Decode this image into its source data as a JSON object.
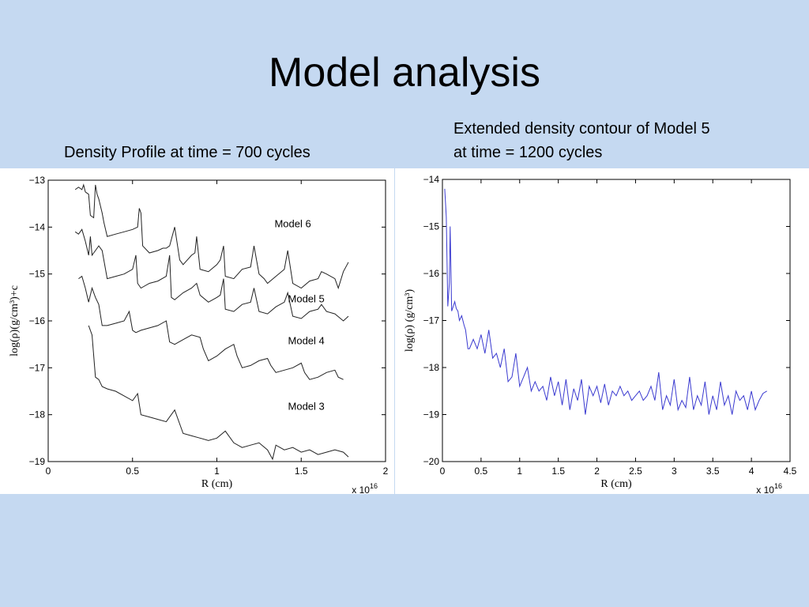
{
  "slide": {
    "title": "Model analysis",
    "left_caption": "Density Profile at time = 700 cycles",
    "right_caption_line1": "Extended density contour of Model 5",
    "right_caption_line2": "at time = 1200 cycles"
  },
  "chart_data": [
    {
      "type": "line",
      "title": "Density Profile at time = 700 cycles",
      "xlabel": "R (cm)",
      "ylabel": "log(ρ)(g/cm³)+c",
      "x_multiplier": "x 10",
      "x_multiplier_exp": "16",
      "xlim": [
        0,
        2
      ],
      "ylim": [
        -19,
        -13
      ],
      "x_ticks": [
        "0",
        "0.5",
        "1",
        "1.5",
        "2"
      ],
      "y_ticks": [
        "−13",
        "−14",
        "−15",
        "−16",
        "−17",
        "−18",
        "−19"
      ],
      "line_color": "#222222",
      "grid": false,
      "annotations": [
        {
          "text": "Model 6",
          "x": 1.45,
          "y": -14.0
        },
        {
          "text": "Model 5",
          "x": 1.53,
          "y": -15.6
        },
        {
          "text": "Model 4",
          "x": 1.53,
          "y": -16.5
        },
        {
          "text": "Model 3",
          "x": 1.53,
          "y": -17.9
        }
      ],
      "series": [
        {
          "x": [
            0.16,
            0.18,
            0.2,
            0.21,
            0.22,
            0.24,
            0.25,
            0.27,
            0.28,
            0.29,
            0.3,
            0.32,
            0.33,
            0.35,
            0.4,
            0.45,
            0.5,
            0.53,
            0.54,
            0.55,
            0.56,
            0.6,
            0.65,
            0.68,
            0.7,
            0.72,
            0.75,
            0.78,
            0.8,
            0.85,
            0.87,
            0.88,
            0.9,
            0.95,
            1.0,
            1.02,
            1.04,
            1.05,
            1.1,
            1.15,
            1.2,
            1.22,
            1.25,
            1.28,
            1.3,
            1.35,
            1.4,
            1.42,
            1.45,
            1.5,
            1.55,
            1.6,
            1.62,
            1.65,
            1.7,
            1.72,
            1.75,
            1.78
          ],
          "y": [
            -13.2,
            -13.15,
            -13.2,
            -13.1,
            -13.25,
            -13.3,
            -13.75,
            -13.8,
            -13.1,
            -13.3,
            -13.4,
            -13.7,
            -13.9,
            -14.2,
            -14.15,
            -14.1,
            -14.05,
            -14.0,
            -13.6,
            -13.7,
            -14.4,
            -14.55,
            -14.5,
            -14.45,
            -14.45,
            -14.4,
            -14.0,
            -14.7,
            -14.8,
            -14.6,
            -14.55,
            -14.2,
            -14.9,
            -14.95,
            -14.8,
            -14.7,
            -14.4,
            -15.05,
            -15.1,
            -14.9,
            -14.85,
            -14.4,
            -15.0,
            -15.1,
            -15.2,
            -15.05,
            -14.9,
            -14.5,
            -15.2,
            -15.3,
            -15.15,
            -15.1,
            -14.95,
            -15.0,
            -15.1,
            -15.3,
            -14.95,
            -14.75
          ]
        },
        {
          "x": [
            0.16,
            0.18,
            0.2,
            0.22,
            0.24,
            0.25,
            0.26,
            0.28,
            0.3,
            0.32,
            0.35,
            0.4,
            0.45,
            0.5,
            0.52,
            0.53,
            0.55,
            0.6,
            0.65,
            0.7,
            0.72,
            0.73,
            0.75,
            0.8,
            0.85,
            0.88,
            0.9,
            0.95,
            1.0,
            1.02,
            1.04,
            1.05,
            1.1,
            1.15,
            1.2,
            1.22,
            1.25,
            1.3,
            1.35,
            1.4,
            1.42,
            1.45,
            1.5,
            1.55,
            1.6,
            1.62,
            1.65,
            1.7,
            1.75,
            1.78
          ],
          "y": [
            -14.1,
            -14.15,
            -14.05,
            -14.3,
            -14.6,
            -14.2,
            -14.6,
            -14.5,
            -14.4,
            -14.5,
            -15.1,
            -15.05,
            -15.0,
            -14.9,
            -14.6,
            -15.2,
            -15.3,
            -15.2,
            -15.15,
            -15.05,
            -14.6,
            -15.5,
            -15.55,
            -15.4,
            -15.3,
            -15.2,
            -15.45,
            -15.6,
            -15.5,
            -15.45,
            -15.1,
            -15.75,
            -15.8,
            -15.65,
            -15.6,
            -15.3,
            -15.8,
            -15.85,
            -15.7,
            -15.6,
            -15.4,
            -15.9,
            -15.95,
            -15.8,
            -15.75,
            -15.65,
            -15.8,
            -15.85,
            -16.0,
            -15.9
          ]
        },
        {
          "x": [
            0.18,
            0.2,
            0.22,
            0.24,
            0.26,
            0.28,
            0.3,
            0.32,
            0.35,
            0.4,
            0.45,
            0.48,
            0.5,
            0.52,
            0.55,
            0.6,
            0.65,
            0.7,
            0.72,
            0.75,
            0.8,
            0.85,
            0.9,
            0.92,
            0.95,
            1.0,
            1.05,
            1.1,
            1.12,
            1.15,
            1.2,
            1.25,
            1.3,
            1.32,
            1.35,
            1.4,
            1.45,
            1.5,
            1.52,
            1.55,
            1.6,
            1.65,
            1.7,
            1.72,
            1.75
          ],
          "y": [
            -15.1,
            -15.05,
            -15.3,
            -15.6,
            -15.3,
            -15.5,
            -15.65,
            -16.1,
            -16.1,
            -16.05,
            -16.0,
            -15.8,
            -16.2,
            -16.25,
            -16.2,
            -16.15,
            -16.1,
            -16.0,
            -16.45,
            -16.5,
            -16.4,
            -16.3,
            -16.35,
            -16.6,
            -16.85,
            -16.75,
            -16.6,
            -16.5,
            -16.75,
            -17.0,
            -16.95,
            -16.85,
            -16.8,
            -16.95,
            -17.1,
            -17.05,
            -17.0,
            -16.9,
            -17.1,
            -17.25,
            -17.2,
            -17.1,
            -17.05,
            -17.2,
            -17.25
          ]
        },
        {
          "x": [
            0.24,
            0.26,
            0.28,
            0.3,
            0.32,
            0.35,
            0.4,
            0.45,
            0.5,
            0.53,
            0.55,
            0.6,
            0.65,
            0.7,
            0.75,
            0.8,
            0.85,
            0.9,
            0.95,
            1.0,
            1.05,
            1.1,
            1.15,
            1.2,
            1.25,
            1.3,
            1.33,
            1.35,
            1.4,
            1.45,
            1.5,
            1.55,
            1.6,
            1.65,
            1.7,
            1.75,
            1.78
          ],
          "y": [
            -16.1,
            -16.3,
            -17.2,
            -17.25,
            -17.4,
            -17.45,
            -17.5,
            -17.6,
            -17.7,
            -17.55,
            -18.0,
            -18.05,
            -18.1,
            -18.15,
            -17.9,
            -18.4,
            -18.45,
            -18.5,
            -18.55,
            -18.5,
            -18.35,
            -18.6,
            -18.7,
            -18.65,
            -18.6,
            -18.75,
            -18.95,
            -18.65,
            -18.75,
            -18.7,
            -18.8,
            -18.75,
            -18.85,
            -18.8,
            -18.75,
            -18.8,
            -18.9
          ]
        }
      ]
    },
    {
      "type": "line",
      "title": "Extended density contour of Model 5 at time = 1200 cycles",
      "xlabel": "R (cm)",
      "ylabel": "log(ρ) (g/cm³)",
      "x_multiplier": "x 10",
      "x_multiplier_exp": "16",
      "xlim": [
        0,
        4.5
      ],
      "ylim": [
        -20,
        -14
      ],
      "x_ticks": [
        "0",
        "0.5",
        "1",
        "1.5",
        "2",
        "2.5",
        "3",
        "3.5",
        "4",
        "4.5"
      ],
      "y_ticks": [
        "−14",
        "−15",
        "−16",
        "−17",
        "−18",
        "−19",
        "−20"
      ],
      "line_color": "#3a3ad0",
      "grid": false,
      "series": [
        {
          "x": [
            0.03,
            0.05,
            0.07,
            0.09,
            0.1,
            0.12,
            0.14,
            0.16,
            0.18,
            0.2,
            0.22,
            0.25,
            0.28,
            0.3,
            0.33,
            0.35,
            0.4,
            0.45,
            0.5,
            0.55,
            0.6,
            0.65,
            0.7,
            0.75,
            0.8,
            0.85,
            0.9,
            0.95,
            1.0,
            1.05,
            1.1,
            1.15,
            1.2,
            1.25,
            1.3,
            1.35,
            1.4,
            1.45,
            1.5,
            1.55,
            1.6,
            1.65,
            1.7,
            1.75,
            1.8,
            1.85,
            1.9,
            1.95,
            2.0,
            2.05,
            2.1,
            2.15,
            2.2,
            2.25,
            2.3,
            2.35,
            2.4,
            2.45,
            2.5,
            2.55,
            2.6,
            2.65,
            2.7,
            2.75,
            2.8,
            2.85,
            2.9,
            2.95,
            3.0,
            3.05,
            3.1,
            3.15,
            3.2,
            3.25,
            3.3,
            3.35,
            3.4,
            3.45,
            3.5,
            3.55,
            3.6,
            3.65,
            3.7,
            3.75,
            3.8,
            3.85,
            3.9,
            3.95,
            4.0,
            4.05,
            4.1,
            4.15,
            4.2
          ],
          "y": [
            -14.2,
            -14.8,
            -16.7,
            -16.2,
            -15.0,
            -16.8,
            -16.7,
            -16.6,
            -16.75,
            -16.8,
            -17.0,
            -16.9,
            -17.1,
            -17.2,
            -17.6,
            -17.6,
            -17.4,
            -17.6,
            -17.3,
            -17.7,
            -17.2,
            -17.8,
            -17.7,
            -18.0,
            -17.6,
            -18.3,
            -18.2,
            -17.7,
            -18.4,
            -18.2,
            -18.0,
            -18.5,
            -18.3,
            -18.5,
            -18.4,
            -18.7,
            -18.2,
            -18.6,
            -18.3,
            -18.8,
            -18.25,
            -18.9,
            -18.45,
            -18.7,
            -18.25,
            -19.0,
            -18.4,
            -18.6,
            -18.4,
            -18.75,
            -18.35,
            -18.8,
            -18.5,
            -18.6,
            -18.4,
            -18.6,
            -18.5,
            -18.7,
            -18.6,
            -18.5,
            -18.7,
            -18.6,
            -18.4,
            -18.7,
            -18.1,
            -18.9,
            -18.6,
            -18.8,
            -18.25,
            -18.9,
            -18.7,
            -18.85,
            -18.2,
            -18.9,
            -18.6,
            -18.8,
            -18.3,
            -19.0,
            -18.6,
            -18.9,
            -18.3,
            -18.8,
            -18.6,
            -19.0,
            -18.5,
            -18.7,
            -18.6,
            -18.9,
            -18.5,
            -18.9,
            -18.7,
            -18.55,
            -18.5
          ]
        }
      ]
    }
  ]
}
